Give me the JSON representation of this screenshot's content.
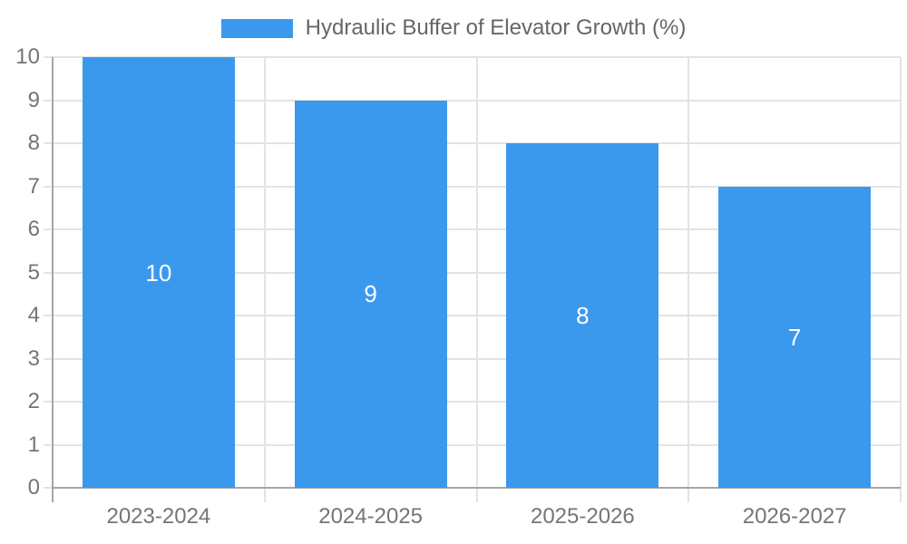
{
  "chart_data": {
    "type": "bar",
    "title": "Hydraulic Buffer of Elevator Growth (%)",
    "categories": [
      "2023-2024",
      "2024-2025",
      "2025-2026",
      "2026-2027"
    ],
    "values": [
      10,
      9,
      8,
      7
    ],
    "bar_value_labels": [
      "10",
      "9",
      "8",
      "7"
    ],
    "xlabel": "",
    "ylabel": "",
    "ylim": [
      0,
      10
    ],
    "yticks": [
      0,
      1,
      2,
      3,
      4,
      5,
      6,
      7,
      8,
      9,
      10
    ],
    "grid": true,
    "legend_position": "top-center",
    "colors": {
      "bar": "#3b99ed",
      "value_label": "#ffffff",
      "axis_text": "#757575",
      "legend_text": "#666666",
      "gridline": "#e3e3e3",
      "axis_line": "#a6a6a6"
    }
  }
}
